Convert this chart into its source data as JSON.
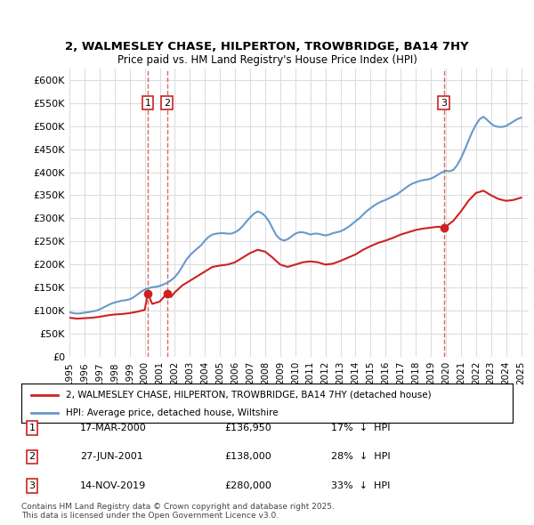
{
  "title_line1": "2, WALMESLEY CHASE, HILPERTON, TROWBRIDGE, BA14 7HY",
  "title_line2": "Price paid vs. HM Land Registry's House Price Index (HPI)",
  "ylabel": "",
  "ylim": [
    0,
    625000
  ],
  "yticks": [
    0,
    50000,
    100000,
    150000,
    200000,
    250000,
    300000,
    350000,
    400000,
    450000,
    500000,
    550000,
    600000
  ],
  "ytick_labels": [
    "£0",
    "£50K",
    "£100K",
    "£150K",
    "£200K",
    "£250K",
    "£300K",
    "£350K",
    "£400K",
    "£450K",
    "£500K",
    "£550K",
    "£600K"
  ],
  "xlim_start": 1995.0,
  "xlim_end": 2025.5,
  "hpi_color": "#6699cc",
  "price_color": "#cc2222",
  "transaction_color": "#cc2222",
  "dashed_line_color": "#cc4444",
  "background_color": "#ffffff",
  "grid_color": "#dddddd",
  "legend_label_red": "2, WALMESLEY CHASE, HILPERTON, TROWBRIDGE, BA14 7HY (detached house)",
  "legend_label_blue": "HPI: Average price, detached house, Wiltshire",
  "transactions": [
    {
      "num": 1,
      "date": "17-MAR-2000",
      "price": 136950,
      "pct": "17%",
      "x_year": 2000.21
    },
    {
      "num": 2,
      "date": "27-JUN-2001",
      "price": 138000,
      "pct": "28%",
      "x_year": 2001.49
    },
    {
      "num": 3,
      "date": "14-NOV-2019",
      "price": 280000,
      "pct": "33%",
      "x_year": 2019.87
    }
  ],
  "footnote": "Contains HM Land Registry data © Crown copyright and database right 2025.\nThis data is licensed under the Open Government Licence v3.0.",
  "hpi_data": {
    "years": [
      1995.0,
      1995.25,
      1995.5,
      1995.75,
      1996.0,
      1996.25,
      1996.5,
      1996.75,
      1997.0,
      1997.25,
      1997.5,
      1997.75,
      1998.0,
      1998.25,
      1998.5,
      1998.75,
      1999.0,
      1999.25,
      1999.5,
      1999.75,
      2000.0,
      2000.25,
      2000.5,
      2000.75,
      2001.0,
      2001.25,
      2001.5,
      2001.75,
      2002.0,
      2002.25,
      2002.5,
      2002.75,
      2003.0,
      2003.25,
      2003.5,
      2003.75,
      2004.0,
      2004.25,
      2004.5,
      2004.75,
      2005.0,
      2005.25,
      2005.5,
      2005.75,
      2006.0,
      2006.25,
      2006.5,
      2006.75,
      2007.0,
      2007.25,
      2007.5,
      2007.75,
      2008.0,
      2008.25,
      2008.5,
      2008.75,
      2009.0,
      2009.25,
      2009.5,
      2009.75,
      2010.0,
      2010.25,
      2010.5,
      2010.75,
      2011.0,
      2011.25,
      2011.5,
      2011.75,
      2012.0,
      2012.25,
      2012.5,
      2012.75,
      2013.0,
      2013.25,
      2013.5,
      2013.75,
      2014.0,
      2014.25,
      2014.5,
      2014.75,
      2015.0,
      2015.25,
      2015.5,
      2015.75,
      2016.0,
      2016.25,
      2016.5,
      2016.75,
      2017.0,
      2017.25,
      2017.5,
      2017.75,
      2018.0,
      2018.25,
      2018.5,
      2018.75,
      2019.0,
      2019.25,
      2019.5,
      2019.75,
      2020.0,
      2020.25,
      2020.5,
      2020.75,
      2021.0,
      2021.25,
      2021.5,
      2021.75,
      2022.0,
      2022.25,
      2022.5,
      2022.75,
      2023.0,
      2023.25,
      2023.5,
      2023.75,
      2024.0,
      2024.25,
      2024.5,
      2024.75,
      2025.0
    ],
    "values": [
      97000,
      95000,
      94000,
      94500,
      96000,
      97000,
      98500,
      100000,
      103000,
      107000,
      111000,
      115000,
      118000,
      120000,
      122000,
      123000,
      125000,
      129000,
      135000,
      141000,
      146000,
      149000,
      151000,
      152000,
      154000,
      157000,
      161000,
      166000,
      173000,
      183000,
      196000,
      210000,
      220000,
      228000,
      235000,
      242000,
      252000,
      260000,
      265000,
      267000,
      268000,
      268000,
      267000,
      267000,
      270000,
      275000,
      283000,
      293000,
      302000,
      310000,
      315000,
      312000,
      305000,
      294000,
      278000,
      263000,
      255000,
      252000,
      255000,
      261000,
      267000,
      270000,
      270000,
      268000,
      265000,
      267000,
      267000,
      265000,
      263000,
      265000,
      268000,
      270000,
      272000,
      276000,
      281000,
      287000,
      294000,
      300000,
      308000,
      316000,
      322000,
      328000,
      333000,
      337000,
      340000,
      344000,
      348000,
      352000,
      358000,
      364000,
      370000,
      375000,
      378000,
      381000,
      383000,
      384000,
      386000,
      390000,
      395000,
      400000,
      403000,
      402000,
      405000,
      415000,
      430000,
      448000,
      468000,
      487000,
      503000,
      515000,
      520000,
      513000,
      505000,
      500000,
      498000,
      498000,
      500000,
      505000,
      510000,
      515000,
      518000
    ]
  },
  "price_data": {
    "years": [
      1995.0,
      1995.5,
      1996.0,
      1996.5,
      1997.0,
      1997.5,
      1998.0,
      1998.5,
      1999.0,
      1999.5,
      2000.0,
      2000.21,
      2000.5,
      2001.0,
      2001.49,
      2001.75,
      2002.0,
      2002.5,
      2003.0,
      2003.5,
      2004.0,
      2004.5,
      2005.0,
      2005.5,
      2006.0,
      2006.5,
      2007.0,
      2007.5,
      2008.0,
      2008.5,
      2009.0,
      2009.5,
      2010.0,
      2010.5,
      2011.0,
      2011.5,
      2012.0,
      2012.5,
      2013.0,
      2013.5,
      2014.0,
      2014.5,
      2015.0,
      2015.5,
      2016.0,
      2016.5,
      2017.0,
      2017.5,
      2018.0,
      2018.5,
      2019.0,
      2019.5,
      2019.87,
      2020.0,
      2020.5,
      2021.0,
      2021.5,
      2022.0,
      2022.5,
      2023.0,
      2023.5,
      2024.0,
      2024.5,
      2025.0
    ],
    "values": [
      85000,
      83000,
      84000,
      85000,
      87000,
      90000,
      92000,
      93000,
      95000,
      98000,
      102000,
      136950,
      115000,
      120000,
      138000,
      130000,
      140000,
      155000,
      165000,
      175000,
      185000,
      195000,
      198000,
      200000,
      205000,
      215000,
      225000,
      232000,
      228000,
      215000,
      200000,
      195000,
      200000,
      205000,
      207000,
      205000,
      200000,
      202000,
      208000,
      215000,
      222000,
      232000,
      240000,
      247000,
      252000,
      258000,
      265000,
      270000,
      275000,
      278000,
      280000,
      282000,
      280000,
      282000,
      295000,
      315000,
      338000,
      355000,
      360000,
      350000,
      342000,
      338000,
      340000,
      345000
    ]
  }
}
